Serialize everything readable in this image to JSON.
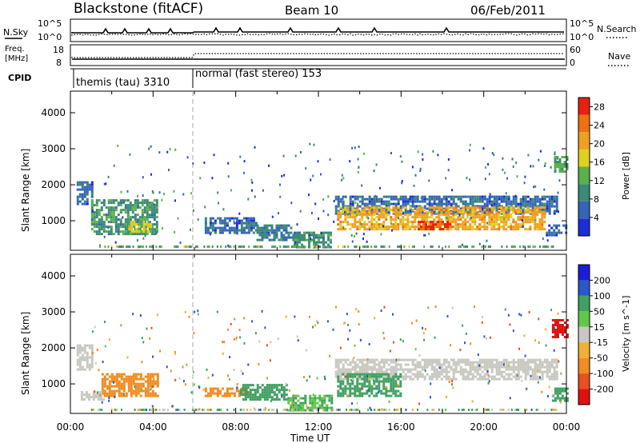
{
  "header": {
    "station": "Blackstone (fitACF)",
    "beam": "Beam 10",
    "date": "06/Feb/2011"
  },
  "summary": {
    "nsky_label": "N.Sky",
    "nsky_ticks": [
      "10^5",
      "10^0"
    ],
    "nsearch_label": "N.Search",
    "nsearch_ticks": [
      "10^5",
      "10^0"
    ],
    "freq_label_1": "Freq.",
    "freq_label_2": "[MHz]",
    "freq_ticks": [
      "18",
      "8"
    ],
    "nave_label": "Nave",
    "nave_ticks": [
      "60",
      "0"
    ],
    "cpid_label": "CPID",
    "cpid_1": "themis (tau) 3310",
    "cpid_2": "normal (fast stereo) 153"
  },
  "colors": {
    "power": [
      "#1a2fd8",
      "#3565b8",
      "#3b8a74",
      "#5bb04a",
      "#e0d020",
      "#f0a020",
      "#f07010",
      "#e82010"
    ],
    "velocity": [
      "#1c1cd6",
      "#2a58c8",
      "#40a060",
      "#60c848",
      "#c8c8c0",
      "#f0b030",
      "#f08c20",
      "#e85020",
      "#e01010"
    ]
  },
  "chart_data": [
    {
      "type": "heatmap",
      "title": "",
      "xlabel": "Time UT",
      "ylabel": "Slant Range [km]",
      "x_ticks": [
        "00:00",
        "04:00",
        "08:00",
        "12:00",
        "16:00",
        "20:00",
        "00:00"
      ],
      "xlim_hours": [
        0,
        24
      ],
      "ylim": [
        180,
        4600
      ],
      "y_ticks": [
        1000,
        2000,
        3000,
        4000
      ],
      "colorbar_label": "Power [dB]",
      "colorbar_ticks": [
        4,
        8,
        12,
        16,
        20,
        24,
        28
      ],
      "colorbar_range": [
        0,
        30
      ],
      "echo_regions": [
        {
          "t_start": 0.3,
          "t_end": 1.0,
          "range_low": 1500,
          "range_high": 2100,
          "power": 6
        },
        {
          "t_start": 1.0,
          "t_end": 4.2,
          "range_low": 650,
          "range_high": 1600,
          "power": 10
        },
        {
          "t_start": 2.8,
          "t_end": 3.9,
          "range_low": 700,
          "range_high": 1000,
          "power": 16
        },
        {
          "t_start": 6.5,
          "t_end": 9.0,
          "range_low": 700,
          "range_high": 1100,
          "power": 6
        },
        {
          "t_start": 9.0,
          "t_end": 11.0,
          "range_low": 500,
          "range_high": 900,
          "power": 8
        },
        {
          "t_start": 10.8,
          "t_end": 12.6,
          "range_low": 250,
          "range_high": 700,
          "power": 10
        },
        {
          "t_start": 12.8,
          "t_end": 23.5,
          "range_low": 1200,
          "range_high": 1700,
          "power": 6
        },
        {
          "t_start": 12.9,
          "t_end": 23.0,
          "range_low": 800,
          "range_high": 1400,
          "power": 20
        },
        {
          "t_start": 16.8,
          "t_end": 18.5,
          "range_low": 750,
          "range_high": 1000,
          "power": 27
        },
        {
          "t_start": 23.0,
          "t_end": 24.0,
          "range_low": 600,
          "range_high": 900,
          "power": 6
        },
        {
          "t_start": 23.4,
          "t_end": 24.0,
          "range_low": 2400,
          "range_high": 2800,
          "power": 12
        }
      ]
    },
    {
      "type": "heatmap",
      "title": "",
      "xlabel": "Time UT",
      "ylabel": "Slant Range [km]",
      "x_ticks": [
        "00:00",
        "04:00",
        "08:00",
        "12:00",
        "16:00",
        "20:00",
        "00:00"
      ],
      "xlim_hours": [
        0,
        24
      ],
      "ylim": [
        180,
        4600
      ],
      "y_ticks": [
        1000,
        2000,
        3000,
        4000
      ],
      "colorbar_label": "Velocity [m s^-1]",
      "colorbar_ticks": [
        200,
        100,
        50,
        15,
        -15,
        -50,
        -100,
        -200
      ],
      "echo_regions": [
        {
          "t_start": 0.3,
          "t_end": 1.0,
          "range_low": 1400,
          "range_high": 2100,
          "velocity": 0
        },
        {
          "t_start": 1.5,
          "t_end": 4.2,
          "range_low": 650,
          "range_high": 1300,
          "velocity": -60
        },
        {
          "t_start": 0.5,
          "t_end": 1.6,
          "range_low": 600,
          "range_high": 800,
          "velocity": 0
        },
        {
          "t_start": 6.5,
          "t_end": 8.5,
          "range_low": 700,
          "range_high": 900,
          "velocity": -60
        },
        {
          "t_start": 8.2,
          "t_end": 10.5,
          "range_low": 600,
          "range_high": 1000,
          "velocity": 40
        },
        {
          "t_start": 10.5,
          "t_end": 12.6,
          "range_low": 250,
          "range_high": 700,
          "velocity": 30
        },
        {
          "t_start": 12.8,
          "t_end": 23.5,
          "range_low": 1150,
          "range_high": 1700,
          "velocity": 0
        },
        {
          "t_start": 12.9,
          "t_end": 16.0,
          "range_low": 700,
          "range_high": 1300,
          "velocity": 40
        },
        {
          "t_start": 23.3,
          "t_end": 24.0,
          "range_low": 2300,
          "range_high": 2800,
          "velocity": -180
        },
        {
          "t_start": 23.3,
          "t_end": 24.0,
          "range_low": 550,
          "range_high": 900,
          "velocity": 50
        }
      ]
    }
  ]
}
